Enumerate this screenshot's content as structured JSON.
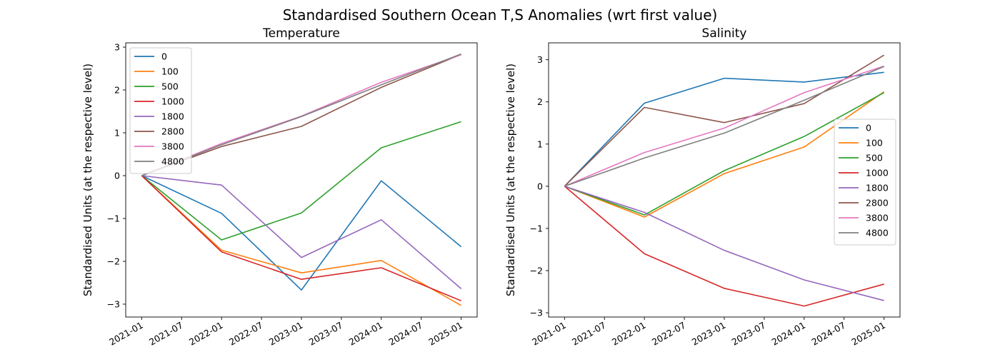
{
  "figure": {
    "title": "Standardised Southern Ocean T,S Anomalies (wrt first value)"
  },
  "chart_data": [
    {
      "type": "line",
      "title": "Temperature",
      "xlabel": "",
      "ylabel": "Standardised Units (at the respective level)",
      "x": [
        "2021-01",
        "2022-01",
        "2023-01",
        "2024-01",
        "2025-01"
      ],
      "xticks": [
        "2021-01",
        "2021-07",
        "2022-01",
        "2022-07",
        "2023-01",
        "2023-07",
        "2024-01",
        "2024-07",
        "2025-01"
      ],
      "yticks": [
        -3,
        -2,
        -1,
        0,
        1,
        2,
        3
      ],
      "ylim": [
        -3.3,
        3.1
      ],
      "legend_position": "upper-left",
      "grid": false,
      "series": [
        {
          "name": "0",
          "color": "#1f77b4",
          "values": [
            0,
            -0.88,
            -2.67,
            -0.12,
            -1.66
          ]
        },
        {
          "name": "100",
          "color": "#ff7f0e",
          "values": [
            0,
            -1.74,
            -2.27,
            -1.98,
            -3.03
          ]
        },
        {
          "name": "500",
          "color": "#2ca02c",
          "values": [
            0,
            -1.5,
            -0.87,
            0.65,
            1.26
          ]
        },
        {
          "name": "1000",
          "color": "#d62728",
          "values": [
            0,
            -1.78,
            -2.42,
            -2.15,
            -2.92
          ]
        },
        {
          "name": "1800",
          "color": "#9467bd",
          "values": [
            0,
            -0.22,
            -1.91,
            -1.03,
            -2.64
          ]
        },
        {
          "name": "2800",
          "color": "#8c564b",
          "values": [
            0,
            0.68,
            1.15,
            2.06,
            2.83
          ]
        },
        {
          "name": "3800",
          "color": "#e377c2",
          "values": [
            0,
            0.75,
            1.39,
            2.18,
            2.82
          ]
        },
        {
          "name": "4800",
          "color": "#7f7f7f",
          "values": [
            0,
            0.72,
            1.38,
            2.12,
            2.84
          ]
        }
      ]
    },
    {
      "type": "line",
      "title": "Salinity",
      "xlabel": "",
      "ylabel": "Standardised Units (at the respective level)",
      "x": [
        "2021-01",
        "2022-01",
        "2023-01",
        "2024-01",
        "2025-01"
      ],
      "xticks": [
        "2021-01",
        "2021-07",
        "2022-01",
        "2022-07",
        "2023-01",
        "2023-07",
        "2024-01",
        "2024-07",
        "2025-01"
      ],
      "yticks": [
        -3,
        -2,
        -1,
        0,
        1,
        2,
        3
      ],
      "ylim": [
        -3.1,
        3.4
      ],
      "legend_position": "center-right",
      "grid": false,
      "series": [
        {
          "name": "0",
          "color": "#1f77b4",
          "values": [
            0,
            1.97,
            2.56,
            2.47,
            2.7
          ]
        },
        {
          "name": "100",
          "color": "#ff7f0e",
          "values": [
            0,
            -0.73,
            0.3,
            0.93,
            2.24
          ]
        },
        {
          "name": "500",
          "color": "#2ca02c",
          "values": [
            0,
            -0.68,
            0.37,
            1.18,
            2.22
          ]
        },
        {
          "name": "1000",
          "color": "#d62728",
          "values": [
            0,
            -1.6,
            -2.42,
            -2.84,
            -2.32
          ]
        },
        {
          "name": "1800",
          "color": "#9467bd",
          "values": [
            0,
            -0.62,
            -1.52,
            -2.22,
            -2.71
          ]
        },
        {
          "name": "2800",
          "color": "#8c564b",
          "values": [
            0,
            1.87,
            1.51,
            1.96,
            3.11
          ]
        },
        {
          "name": "3800",
          "color": "#e377c2",
          "values": [
            0,
            0.8,
            1.38,
            2.22,
            2.85
          ]
        },
        {
          "name": "4800",
          "color": "#7f7f7f",
          "values": [
            0,
            0.67,
            1.26,
            2.04,
            2.84
          ]
        }
      ]
    }
  ]
}
